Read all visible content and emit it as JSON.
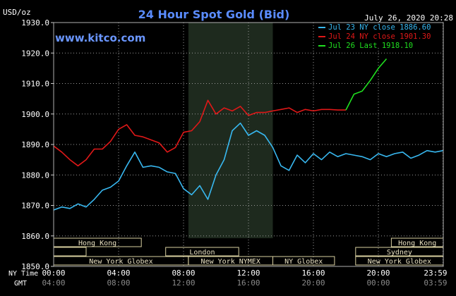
{
  "chart_data": {
    "type": "line",
    "title": "24 Hour Spot Gold (Bid)",
    "ylabel": "USD/oz",
    "watermark": "www.kitco.com",
    "date_stamp": "July 26, 2020 20:28",
    "ylim": [
      1860,
      1930
    ],
    "y_ticks": [
      "1930.0",
      "1920.0",
      "1910.0",
      "1900.0",
      "1890.0",
      "1880.0",
      "1870.0",
      "1860.0",
      "1850.0"
    ],
    "y_tick_values": [
      1930,
      1920,
      1910,
      1900,
      1890,
      1880,
      1870,
      1860,
      1850
    ],
    "x_axis_ny_label": "NY Time",
    "x_axis_gmt_label": "GMT",
    "x_ticks_ny": [
      "00:00",
      "04:00",
      "08:00",
      "12:00",
      "16:00",
      "20:00",
      "23:59"
    ],
    "x_ticks_gmt": [
      "04:00",
      "08:00",
      "12:00",
      "16:00",
      "20:00",
      "00:00",
      "03:59"
    ],
    "x_tick_hours": [
      0,
      4,
      8,
      12,
      16,
      20,
      23.98
    ],
    "grid": true,
    "legend_position": "top-right",
    "shaded_region_hours": [
      8.3,
      13.5
    ],
    "sessions": [
      {
        "label": "Hong Kong",
        "row": 0,
        "start": 0,
        "end": 5.4
      },
      {
        "label": "Hong Kong",
        "row": 0,
        "start": 20.8,
        "end": 24
      },
      {
        "label": "",
        "row": 1,
        "start": 0,
        "end": 2.0
      },
      {
        "label": "London",
        "row": 1,
        "start": 6.9,
        "end": 11.4
      },
      {
        "label": "Sydney",
        "row": 1,
        "start": 18.6,
        "end": 24
      },
      {
        "label": "New York Globex",
        "row": 2,
        "start": 0,
        "end": 8.3
      },
      {
        "label": "New York NYMEX",
        "row": 2,
        "start": 8.3,
        "end": 13.5
      },
      {
        "label": "NY Globex",
        "row": 2,
        "start": 13.5,
        "end": 17.3
      },
      {
        "label": "New York Globex",
        "row": 2,
        "start": 18.6,
        "end": 24
      }
    ],
    "series": [
      {
        "name": "Jul 23 NY close 1886.60",
        "color": "#38b8f0",
        "x": [
          0,
          0.5,
          1,
          1.5,
          2,
          2.5,
          3,
          3.5,
          4,
          4.5,
          5,
          5.5,
          6,
          6.5,
          7,
          7.5,
          8,
          8.5,
          9,
          9.5,
          10,
          10.5,
          11,
          11.5,
          12,
          12.5,
          13,
          13.5,
          14,
          14.5,
          15,
          15.5,
          16,
          16.5,
          17,
          17.5,
          18,
          18.5,
          19,
          19.5,
          20,
          20.5,
          21,
          21.5,
          22,
          22.5,
          23,
          23.5,
          23.98
        ],
        "y": [
          1868.5,
          1869.5,
          1869.0,
          1870.5,
          1869.5,
          1872.0,
          1875.0,
          1876.0,
          1878.0,
          1883.0,
          1887.5,
          1882.5,
          1883.0,
          1882.5,
          1881.0,
          1880.5,
          1875.5,
          1873.5,
          1876.5,
          1872.0,
          1880.0,
          1885.0,
          1894.5,
          1897.0,
          1893.0,
          1894.5,
          1893.0,
          1889.0,
          1883.0,
          1881.5,
          1886.5,
          1884.0,
          1887.0,
          1885.0,
          1887.5,
          1886.0,
          1887.0,
          1886.5,
          1886.0,
          1885.0,
          1887.0,
          1886.0,
          1887.0,
          1887.5,
          1885.5,
          1886.5,
          1888.0,
          1887.5,
          1888.0
        ]
      },
      {
        "name": "Jul 24 NY close 1901.30",
        "color": "#e01818",
        "x": [
          0,
          0.5,
          1,
          1.5,
          2,
          2.5,
          3,
          3.5,
          4,
          4.5,
          5,
          5.5,
          6,
          6.5,
          7,
          7.5,
          8,
          8.5,
          9,
          9.5,
          10,
          10.5,
          11,
          11.5,
          12,
          12.5,
          13,
          13.5,
          14,
          14.5,
          15,
          15.5,
          16,
          16.5,
          17,
          17.5,
          18
        ],
        "y": [
          1889.5,
          1887.5,
          1885.0,
          1883.0,
          1885.0,
          1888.5,
          1888.5,
          1891.0,
          1895.0,
          1896.5,
          1893.0,
          1892.5,
          1891.5,
          1890.5,
          1887.5,
          1889.0,
          1894.0,
          1894.5,
          1897.5,
          1904.5,
          1900.0,
          1902.0,
          1901.0,
          1902.5,
          1899.5,
          1900.5,
          1900.5,
          1901.0,
          1901.5,
          1902.0,
          1900.5,
          1901.5,
          1901.0,
          1901.5,
          1901.5,
          1901.3,
          1901.3
        ]
      },
      {
        "name": "Jul 26 Last 1918.10",
        "color": "#20e020",
        "x": [
          18,
          18.5,
          19,
          19.5,
          20,
          20.5
        ],
        "y": [
          1901.3,
          1906.5,
          1907.5,
          1911.0,
          1915.0,
          1918.1
        ]
      }
    ]
  }
}
